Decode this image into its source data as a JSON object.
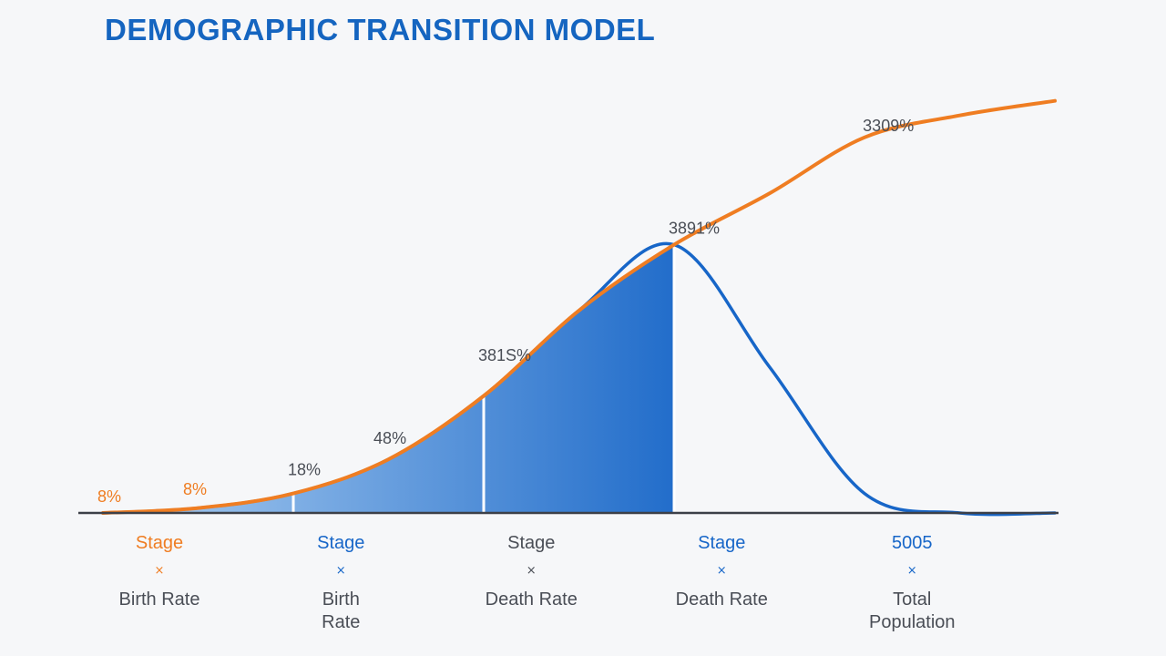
{
  "colors": {
    "title": "#1565c0",
    "orange": "#ef7d22",
    "blue": "#1766c8",
    "blue_light": "#a9cdf1",
    "axis": "#3c4048",
    "text_gray": "#4a4e56"
  },
  "chart_data": {
    "type": "area",
    "title": "DEMOGRAPHIC TRANSITION MODEL",
    "xlabel": "",
    "ylabel": "",
    "grid": false,
    "legend": "none",
    "x": [
      0,
      0.5,
      1,
      1.5,
      2,
      2.5,
      3,
      3.5,
      4,
      4.5,
      5
    ],
    "series": [
      {
        "color": "orange",
        "values": [
          0,
          2,
          8,
          22,
          48,
          83,
          110,
          131,
          154,
          163,
          169
        ]
      },
      {
        "color": "blue",
        "values": [
          0,
          2,
          8,
          22,
          48,
          83,
          110,
          60,
          8,
          0,
          0
        ]
      }
    ],
    "data_labels": [
      {
        "x": 0,
        "y": 0,
        "text": "8%",
        "color": "orange"
      },
      {
        "x": 0.45,
        "y": 3,
        "text": "8%",
        "color": "orange"
      },
      {
        "x": 1.0,
        "y": 11,
        "text": "18%",
        "color": "gray"
      },
      {
        "x": 1.45,
        "y": 24,
        "text": "48%",
        "color": "gray"
      },
      {
        "x": 2.0,
        "y": 58,
        "text": "381S%",
        "color": "gray"
      },
      {
        "x": 3.0,
        "y": 110,
        "text": "3891%",
        "color": "gray"
      },
      {
        "x": 4.02,
        "y": 152,
        "text": "3309%",
        "color": "gray"
      }
    ],
    "stages": [
      {
        "x": 0,
        "label": "Stage",
        "marker": "×",
        "sub": [
          "Birth Rate"
        ],
        "color": "orange"
      },
      {
        "x": 1.25,
        "label": "Stage",
        "marker": "×",
        "sub": [
          "Birth",
          "Rate"
        ],
        "color": "blue"
      },
      {
        "x": 2.25,
        "label": "Stage",
        "marker": "×",
        "sub": [
          "Death Rate"
        ],
        "color": "gray"
      },
      {
        "x": 3.25,
        "label": "Stage",
        "marker": "×",
        "sub": [
          "Death Rate"
        ],
        "color": "blue"
      },
      {
        "x": 4.25,
        "label": "5005",
        "marker": "×",
        "sub": [
          "Total",
          "Population"
        ],
        "color": "blue"
      }
    ],
    "xlim": [
      0,
      5
    ],
    "ylim": [
      0,
      170
    ]
  }
}
